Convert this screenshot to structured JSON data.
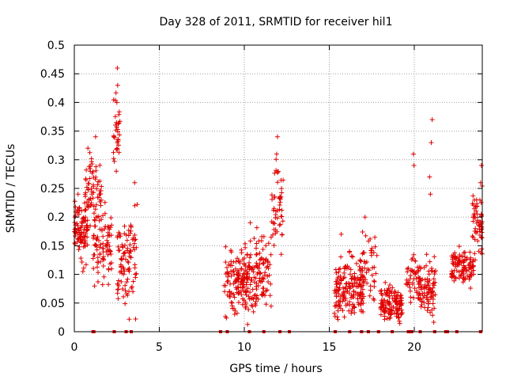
{
  "chart_data": {
    "type": "scatter",
    "title": "Day 328 of 2011, SRMTID for receiver hil1",
    "xlabel": "GPS time / hours",
    "ylabel": "SRMTID / TECUs",
    "xlim": [
      0,
      24
    ],
    "ylim": [
      0,
      0.5
    ],
    "xticks": [
      0,
      5,
      10,
      15,
      20
    ],
    "xtick_labels": [
      "0",
      "5",
      "10",
      "15",
      "20"
    ],
    "yticks": [
      0,
      0.05,
      0.1,
      0.15,
      0.2,
      0.25,
      0.3,
      0.35,
      0.4,
      0.45,
      0.5
    ],
    "ytick_labels": [
      "0",
      "0.05",
      "0.1",
      "0.15",
      "0.2",
      "0.25",
      "0.3",
      "0.35",
      "0.4",
      "0.45",
      "0.5"
    ],
    "grid": true,
    "marker": "+",
    "color": "#e00000",
    "clusters": [
      {
        "x_start": 0.0,
        "x_end": 0.8,
        "y_min": 0.1,
        "y_max": 0.26,
        "count": 90
      },
      {
        "x_start": 0.6,
        "x_end": 1.6,
        "y_min": 0.15,
        "y_max": 0.34,
        "count": 70
      },
      {
        "x_start": 1.1,
        "x_end": 2.2,
        "y_min": 0.05,
        "y_max": 0.25,
        "count": 90
      },
      {
        "x_start": 2.3,
        "x_end": 2.7,
        "y_min": 0.25,
        "y_max": 0.45,
        "count": 30
      },
      {
        "x_start": 2.5,
        "x_end": 3.7,
        "y_min": 0.0,
        "y_max": 0.25,
        "count": 100
      },
      {
        "x_start": 8.8,
        "x_end": 10.2,
        "y_min": 0.0,
        "y_max": 0.17,
        "count": 120
      },
      {
        "x_start": 10.0,
        "x_end": 11.6,
        "y_min": 0.0,
        "y_max": 0.2,
        "count": 130
      },
      {
        "x_start": 11.6,
        "x_end": 12.3,
        "y_min": 0.1,
        "y_max": 0.33,
        "count": 50
      },
      {
        "x_start": 15.3,
        "x_end": 17.0,
        "y_min": 0.0,
        "y_max": 0.15,
        "count": 170
      },
      {
        "x_start": 16.8,
        "x_end": 17.8,
        "y_min": 0.02,
        "y_max": 0.2,
        "count": 50
      },
      {
        "x_start": 18.0,
        "x_end": 19.3,
        "y_min": 0.0,
        "y_max": 0.1,
        "count": 130
      },
      {
        "x_start": 19.5,
        "x_end": 20.4,
        "y_min": 0.03,
        "y_max": 0.15,
        "count": 50
      },
      {
        "x_start": 20.2,
        "x_end": 21.3,
        "y_min": 0.0,
        "y_max": 0.15,
        "count": 90
      },
      {
        "x_start": 22.2,
        "x_end": 23.5,
        "y_min": 0.07,
        "y_max": 0.16,
        "count": 110
      },
      {
        "x_start": 23.4,
        "x_end": 24.0,
        "y_min": 0.1,
        "y_max": 0.27,
        "count": 60
      }
    ],
    "outliers": [
      {
        "x": 2.53,
        "y": 0.46
      },
      {
        "x": 2.55,
        "y": 0.43
      },
      {
        "x": 2.5,
        "y": 0.4
      },
      {
        "x": 2.48,
        "y": 0.365
      },
      {
        "x": 2.52,
        "y": 0.33
      },
      {
        "x": 11.95,
        "y": 0.34
      },
      {
        "x": 11.9,
        "y": 0.31
      },
      {
        "x": 19.95,
        "y": 0.31
      },
      {
        "x": 19.98,
        "y": 0.29
      },
      {
        "x": 21.05,
        "y": 0.37
      },
      {
        "x": 21.0,
        "y": 0.33
      },
      {
        "x": 20.9,
        "y": 0.27
      },
      {
        "x": 20.95,
        "y": 0.24
      },
      {
        "x": 23.95,
        "y": 0.29
      },
      {
        "x": 23.9,
        "y": 0.26
      },
      {
        "x": 0.8,
        "y": 0.32
      },
      {
        "x": 1.25,
        "y": 0.34
      },
      {
        "x": 10.35,
        "y": 0.19
      },
      {
        "x": 17.1,
        "y": 0.2
      },
      {
        "x": 15.7,
        "y": 0.17
      },
      {
        "x": 3.55,
        "y": 0.26
      },
      {
        "x": 0.5,
        "y": 0.105
      }
    ],
    "zero_markers_x": [
      1.1,
      1.15,
      2.35,
      3.05,
      3.35,
      8.6,
      9.0,
      10.3,
      11.15,
      12.1,
      12.65,
      15.35,
      16.2,
      16.9,
      17.3,
      17.9,
      18.7,
      19.65,
      19.75,
      19.85,
      20.35,
      21.2,
      21.85,
      21.95,
      22.5,
      23.9
    ]
  }
}
